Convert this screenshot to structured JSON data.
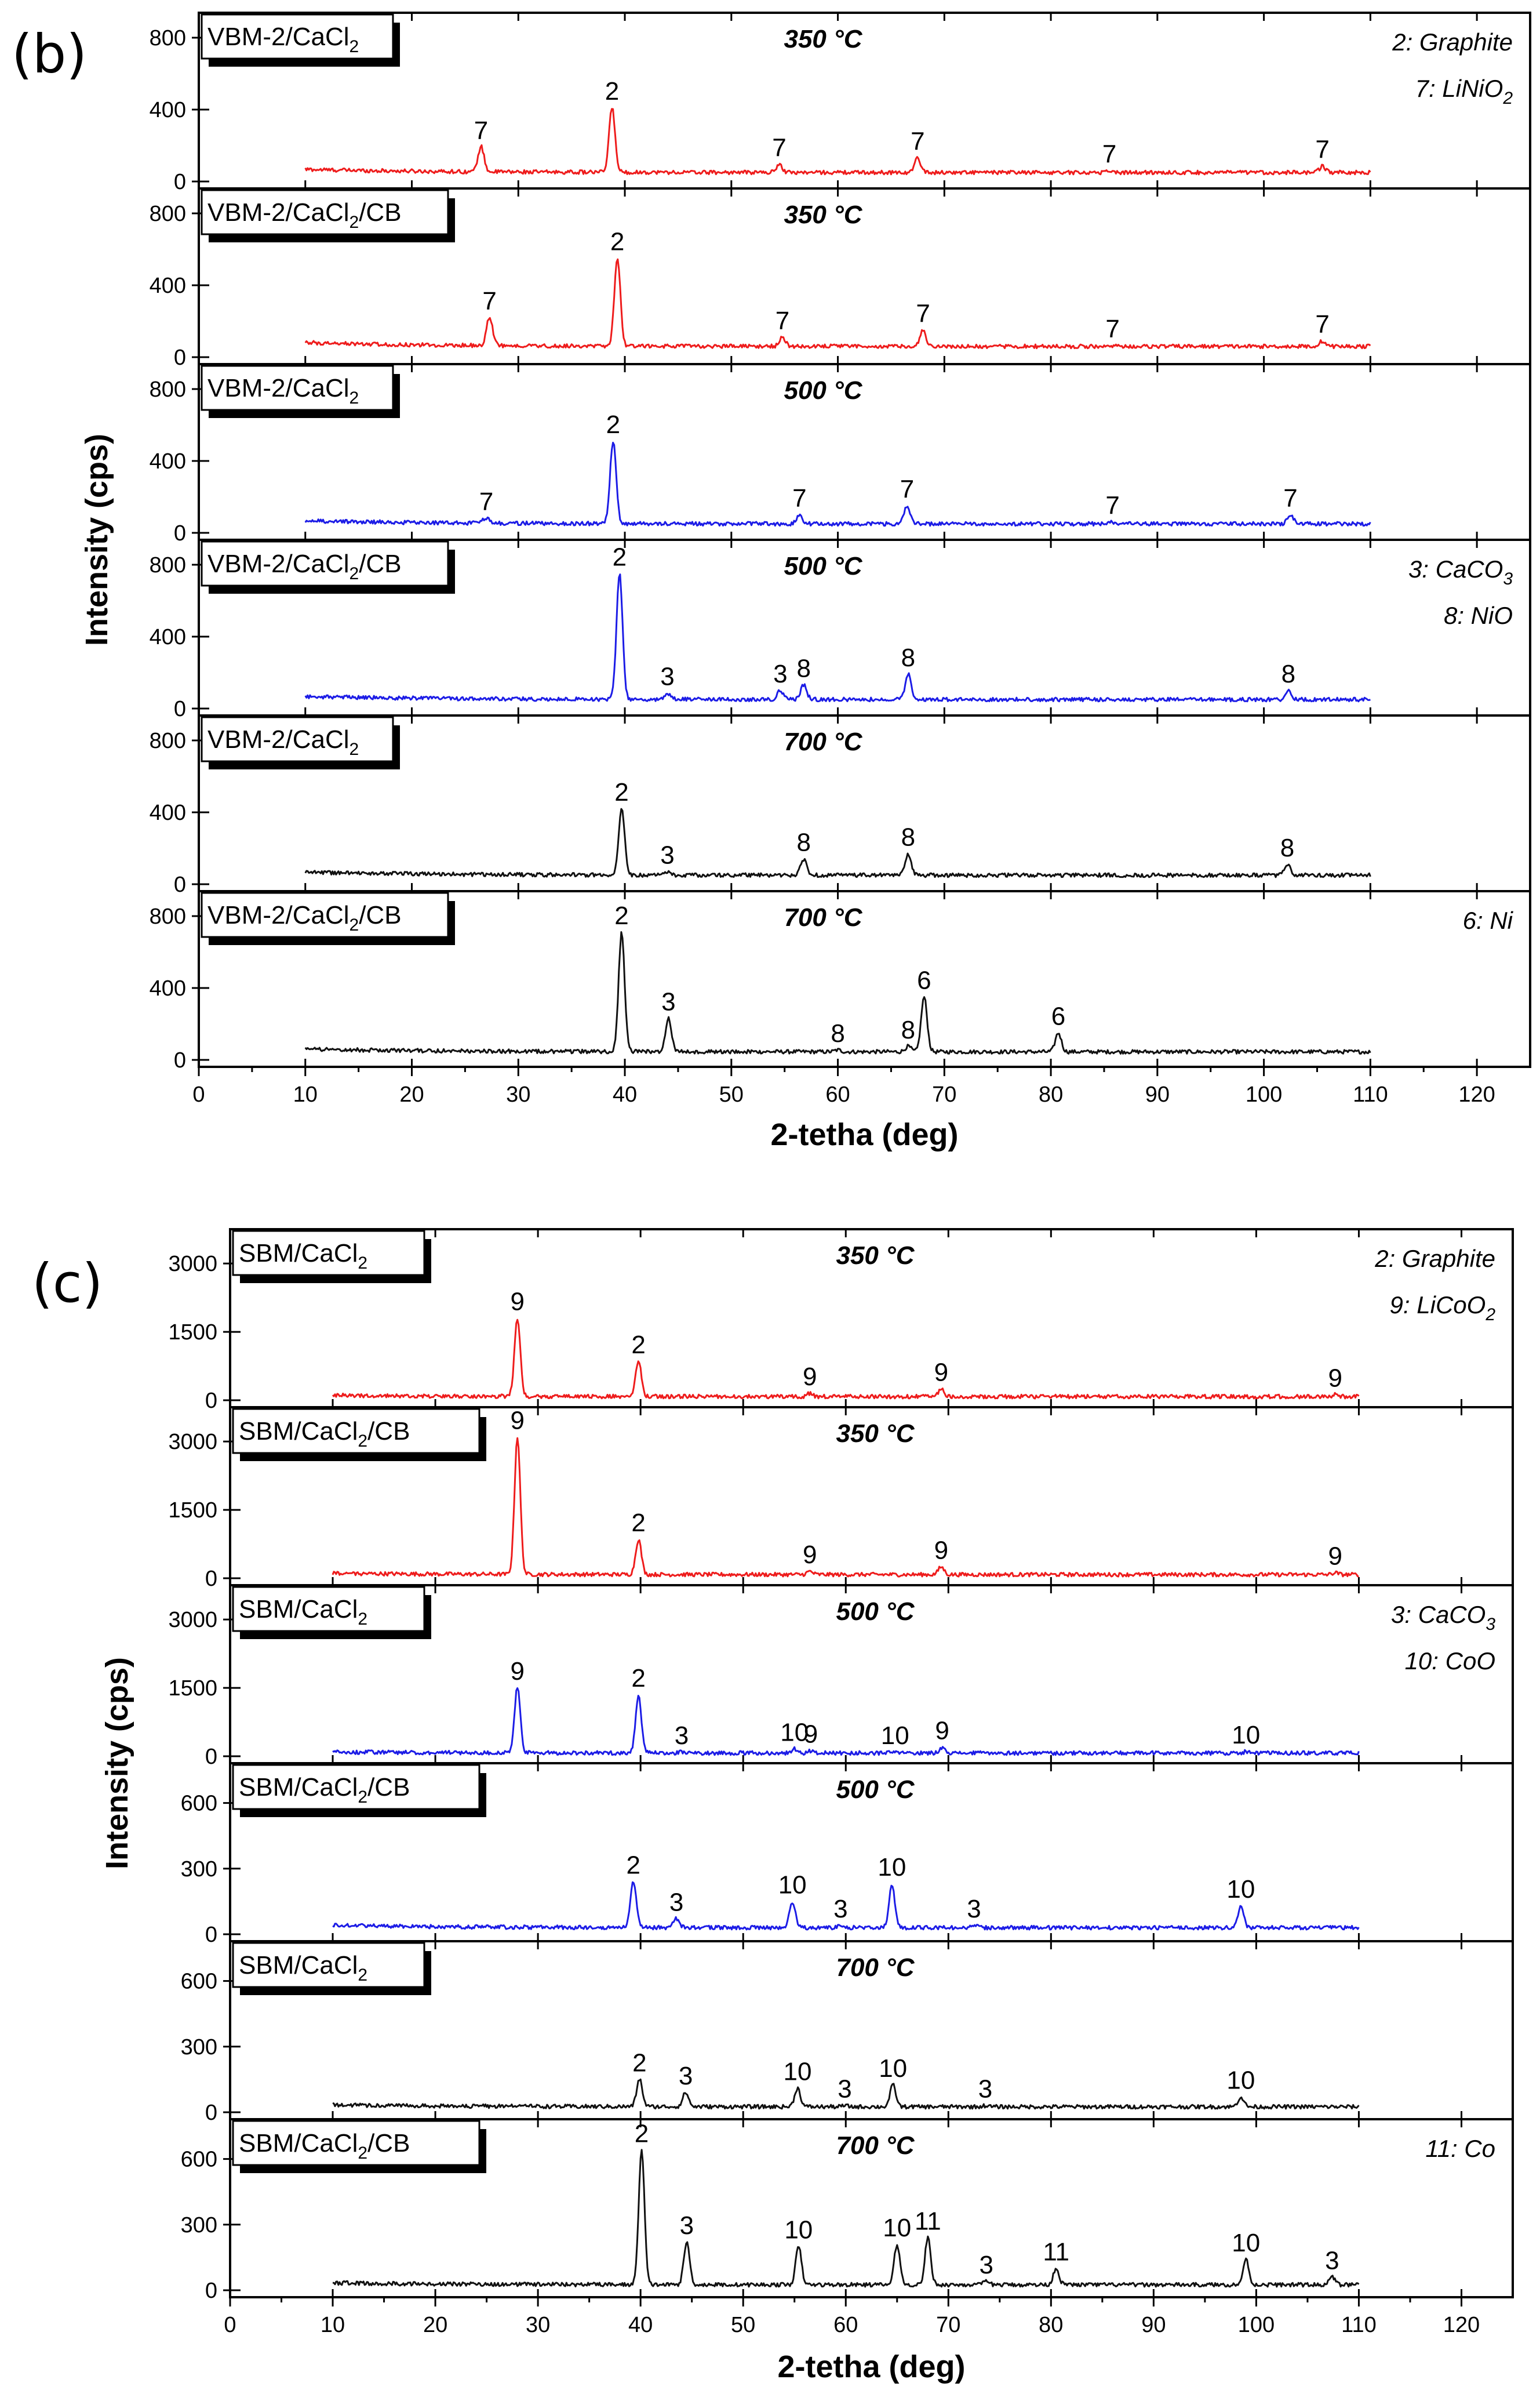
{
  "colors": {
    "red": "#ee1c1c",
    "blue": "#1c1ce6",
    "black": "#111111"
  },
  "chart_data": [
    {
      "type": "line",
      "panel_letter": "(b)",
      "xlabel": "2-tetha (deg)",
      "ylabel": "Intensity (cps)",
      "xlim": [
        0,
        125
      ],
      "xticks": [
        "0",
        "10",
        "20",
        "30",
        "40",
        "50",
        "60",
        "70",
        "80",
        "90",
        "100",
        "110",
        "120"
      ],
      "series_range": [
        10,
        110
      ],
      "panels": [
        {
          "sample_label": "VBM-2/CaCl2",
          "sample_base": "VBM-2/CaCl",
          "sample_sub": "2",
          "sample_tail": "",
          "temperature": "350 °C",
          "color": "red",
          "ylim": [
            0,
            900
          ],
          "yticks": [
            "0",
            "400",
            "800"
          ],
          "baseline": 50,
          "peaks": [
            {
              "x": 26.5,
              "y": 190,
              "label": "7"
            },
            {
              "x": 38.8,
              "y": 410,
              "label": "2"
            },
            {
              "x": 54.5,
              "y": 95,
              "label": "7"
            },
            {
              "x": 67.5,
              "y": 130,
              "label": "7"
            },
            {
              "x": 85.5,
              "y": 60,
              "label": "7"
            },
            {
              "x": 105.5,
              "y": 85,
              "label": "7"
            }
          ],
          "legend": [
            {
              "num": "2",
              "text": "Graphite",
              "sub": ""
            },
            {
              "num": "7",
              "text": "LiNiO",
              "sub": "2"
            }
          ]
        },
        {
          "sample_label": "VBM-2/CaCl2/CB",
          "sample_base": "VBM-2/CaCl",
          "sample_sub": "2",
          "sample_tail": "/CB",
          "temperature": "350 °C",
          "color": "red",
          "ylim": [
            0,
            900
          ],
          "yticks": [
            "0",
            "400",
            "800"
          ],
          "baseline": 60,
          "peaks": [
            {
              "x": 27.3,
              "y": 220,
              "label": "7"
            },
            {
              "x": 39.3,
              "y": 550,
              "label": "2"
            },
            {
              "x": 54.8,
              "y": 110,
              "label": "7"
            },
            {
              "x": 68.0,
              "y": 150,
              "label": "7"
            },
            {
              "x": 85.8,
              "y": 65,
              "label": "7"
            },
            {
              "x": 105.5,
              "y": 90,
              "label": "7"
            }
          ],
          "legend": []
        },
        {
          "sample_label": "VBM-2/CaCl2",
          "sample_base": "VBM-2/CaCl",
          "sample_sub": "2",
          "sample_tail": "",
          "temperature": "500 °C",
          "color": "blue",
          "ylim": [
            0,
            900
          ],
          "yticks": [
            "0",
            "400",
            "800"
          ],
          "baseline": 50,
          "peaks": [
            {
              "x": 27.0,
              "y": 80,
              "label": "7"
            },
            {
              "x": 38.9,
              "y": 510,
              "label": "2"
            },
            {
              "x": 56.4,
              "y": 100,
              "label": "7"
            },
            {
              "x": 66.5,
              "y": 150,
              "label": "7"
            },
            {
              "x": 85.8,
              "y": 60,
              "label": "7"
            },
            {
              "x": 102.5,
              "y": 100,
              "label": "7"
            }
          ],
          "legend": []
        },
        {
          "sample_label": "VBM-2/CaCl2/CB",
          "sample_base": "VBM-2/CaCl",
          "sample_sub": "2",
          "sample_tail": "/CB",
          "temperature": "500 °C",
          "color": "blue",
          "ylim": [
            0,
            900
          ],
          "yticks": [
            "0",
            "400",
            "800"
          ],
          "baseline": 50,
          "peaks": [
            {
              "x": 39.5,
              "y": 750,
              "label": "2"
            },
            {
              "x": 44.0,
              "y": 85,
              "label": "3"
            },
            {
              "x": 54.6,
              "y": 100,
              "label": "3"
            },
            {
              "x": 56.8,
              "y": 130,
              "label": "8"
            },
            {
              "x": 66.6,
              "y": 190,
              "label": "8"
            },
            {
              "x": 102.3,
              "y": 100,
              "label": "8"
            }
          ],
          "legend": [
            {
              "num": "3",
              "text": "CaCO",
              "sub": "3"
            },
            {
              "num": "8",
              "text": "NiO",
              "sub": ""
            }
          ]
        },
        {
          "sample_label": "VBM-2/CaCl2",
          "sample_base": "VBM-2/CaCl",
          "sample_sub": "2",
          "sample_tail": "",
          "temperature": "700 °C",
          "color": "black",
          "ylim": [
            0,
            900
          ],
          "yticks": [
            "0",
            "400",
            "800"
          ],
          "baseline": 50,
          "peaks": [
            {
              "x": 39.7,
              "y": 420,
              "label": "2"
            },
            {
              "x": 44.0,
              "y": 70,
              "label": "3"
            },
            {
              "x": 56.8,
              "y": 140,
              "label": "8"
            },
            {
              "x": 66.6,
              "y": 170,
              "label": "8"
            },
            {
              "x": 102.2,
              "y": 110,
              "label": "8"
            }
          ],
          "legend": []
        },
        {
          "sample_label": "VBM-2/CaCl2/CB",
          "sample_base": "VBM-2/CaCl",
          "sample_sub": "2",
          "sample_tail": "/CB",
          "temperature": "700 °C",
          "color": "black",
          "ylim": [
            0,
            900
          ],
          "yticks": [
            "0",
            "400",
            "800"
          ],
          "baseline": 45,
          "peaks": [
            {
              "x": 39.7,
              "y": 710,
              "label": "2"
            },
            {
              "x": 44.1,
              "y": 230,
              "label": "3"
            },
            {
              "x": 60.0,
              "y": 55,
              "label": "8"
            },
            {
              "x": 66.6,
              "y": 75,
              "label": "8"
            },
            {
              "x": 68.1,
              "y": 350,
              "label": "6"
            },
            {
              "x": 80.7,
              "y": 150,
              "label": "6"
            }
          ],
          "legend": [
            {
              "num": "6",
              "text": "Ni",
              "sub": ""
            }
          ]
        }
      ]
    },
    {
      "type": "line",
      "panel_letter": "(c)",
      "xlabel": "2-tetha (deg)",
      "ylabel": "Intensity (cps)",
      "xlim": [
        0,
        125
      ],
      "xticks": [
        "0",
        "10",
        "20",
        "30",
        "40",
        "50",
        "60",
        "70",
        "80",
        "90",
        "100",
        "110",
        "120"
      ],
      "series_range": [
        10,
        110
      ],
      "panels": [
        {
          "sample_label": "SBM/CaCl2",
          "sample_base": "SBM/CaCl",
          "sample_sub": "2",
          "sample_tail": "",
          "temperature": "350 °C",
          "color": "red",
          "ylim": [
            0,
            3600
          ],
          "yticks": [
            "0",
            "1500",
            "3000"
          ],
          "baseline": 80,
          "peaks": [
            {
              "x": 28.0,
              "y": 1800,
              "label": "9"
            },
            {
              "x": 39.8,
              "y": 850,
              "label": "2"
            },
            {
              "x": 56.5,
              "y": 150,
              "label": "9"
            },
            {
              "x": 69.3,
              "y": 250,
              "label": "9"
            },
            {
              "x": 107.7,
              "y": 120,
              "label": "9"
            }
          ],
          "legend": [
            {
              "num": "2",
              "text": "Graphite",
              "sub": ""
            },
            {
              "num": "9",
              "text": "LiCoO",
              "sub": "2"
            }
          ]
        },
        {
          "sample_label": "SBM/CaCl2/CB",
          "sample_base": "SBM/CaCl",
          "sample_sub": "2",
          "sample_tail": "/CB",
          "temperature": "350 °C",
          "color": "red",
          "ylim": [
            0,
            3600
          ],
          "yticks": [
            "0",
            "1500",
            "3000"
          ],
          "baseline": 80,
          "peaks": [
            {
              "x": 28.0,
              "y": 3100,
              "label": "9"
            },
            {
              "x": 39.8,
              "y": 850,
              "label": "2"
            },
            {
              "x": 56.5,
              "y": 150,
              "label": "9"
            },
            {
              "x": 69.3,
              "y": 250,
              "label": "9"
            },
            {
              "x": 107.7,
              "y": 120,
              "label": "9"
            }
          ],
          "legend": []
        },
        {
          "sample_label": "SBM/CaCl2",
          "sample_base": "SBM/CaCl",
          "sample_sub": "2",
          "sample_tail": "",
          "temperature": "500 °C",
          "color": "blue",
          "ylim": [
            0,
            3600
          ],
          "yticks": [
            "0",
            "1500",
            "3000"
          ],
          "baseline": 70,
          "peaks": [
            {
              "x": 28.0,
              "y": 1500,
              "label": "9"
            },
            {
              "x": 39.8,
              "y": 1350,
              "label": "2"
            },
            {
              "x": 44.0,
              "y": 90,
              "label": "3"
            },
            {
              "x": 55.0,
              "y": 160,
              "label": "10"
            },
            {
              "x": 56.6,
              "y": 120,
              "label": "9"
            },
            {
              "x": 64.8,
              "y": 90,
              "label": "10"
            },
            {
              "x": 69.4,
              "y": 200,
              "label": "9"
            },
            {
              "x": 99.0,
              "y": 100,
              "label": "10"
            }
          ],
          "legend": [
            {
              "num": "3",
              "text": "CaCO",
              "sub": "3"
            },
            {
              "num": "10",
              "text": "CoO",
              "sub": ""
            }
          ]
        },
        {
          "sample_label": "SBM/CaCl2/CB",
          "sample_base": "SBM/CaCl",
          "sample_sub": "2",
          "sample_tail": "/CB",
          "temperature": "500 °C",
          "color": "blue",
          "ylim": [
            0,
            750
          ],
          "yticks": [
            "0",
            "300",
            "600"
          ],
          "baseline": 30,
          "peaks": [
            {
              "x": 39.3,
              "y": 240,
              "label": "2"
            },
            {
              "x": 43.5,
              "y": 70,
              "label": "3"
            },
            {
              "x": 54.8,
              "y": 150,
              "label": "10"
            },
            {
              "x": 59.5,
              "y": 40,
              "label": "3"
            },
            {
              "x": 64.5,
              "y": 230,
              "label": "10"
            },
            {
              "x": 72.5,
              "y": 40,
              "label": "3"
            },
            {
              "x": 98.5,
              "y": 130,
              "label": "10"
            }
          ],
          "legend": []
        },
        {
          "sample_label": "SBM/CaCl2",
          "sample_base": "SBM/CaCl",
          "sample_sub": "2",
          "sample_tail": "",
          "temperature": "700 °C",
          "color": "black",
          "ylim": [
            0,
            750
          ],
          "yticks": [
            "0",
            "300",
            "600"
          ],
          "baseline": 25,
          "peaks": [
            {
              "x": 39.9,
              "y": 150,
              "label": "2"
            },
            {
              "x": 44.4,
              "y": 90,
              "label": "3"
            },
            {
              "x": 55.3,
              "y": 110,
              "label": "10"
            },
            {
              "x": 59.9,
              "y": 30,
              "label": "3"
            },
            {
              "x": 64.6,
              "y": 125,
              "label": "10"
            },
            {
              "x": 73.6,
              "y": 30,
              "label": "3"
            },
            {
              "x": 98.5,
              "y": 70,
              "label": "10"
            }
          ],
          "legend": []
        },
        {
          "sample_label": "SBM/CaCl2/CB",
          "sample_base": "SBM/CaCl",
          "sample_sub": "2",
          "sample_tail": "/CB",
          "temperature": "700 °C",
          "color": "black",
          "ylim": [
            0,
            750
          ],
          "yticks": [
            "0",
            "300",
            "600"
          ],
          "baseline": 25,
          "peaks": [
            {
              "x": 40.1,
              "y": 640,
              "label": "2"
            },
            {
              "x": 44.5,
              "y": 220,
              "label": "3"
            },
            {
              "x": 55.4,
              "y": 200,
              "label": "10"
            },
            {
              "x": 65.0,
              "y": 210,
              "label": "10"
            },
            {
              "x": 68.0,
              "y": 240,
              "label": "11"
            },
            {
              "x": 73.7,
              "y": 40,
              "label": "3"
            },
            {
              "x": 80.5,
              "y": 100,
              "label": "11"
            },
            {
              "x": 99.0,
              "y": 140,
              "label": "10"
            },
            {
              "x": 107.4,
              "y": 60,
              "label": "3"
            }
          ],
          "legend": [
            {
              "num": "11",
              "text": "Co",
              "sub": ""
            }
          ]
        }
      ]
    }
  ]
}
